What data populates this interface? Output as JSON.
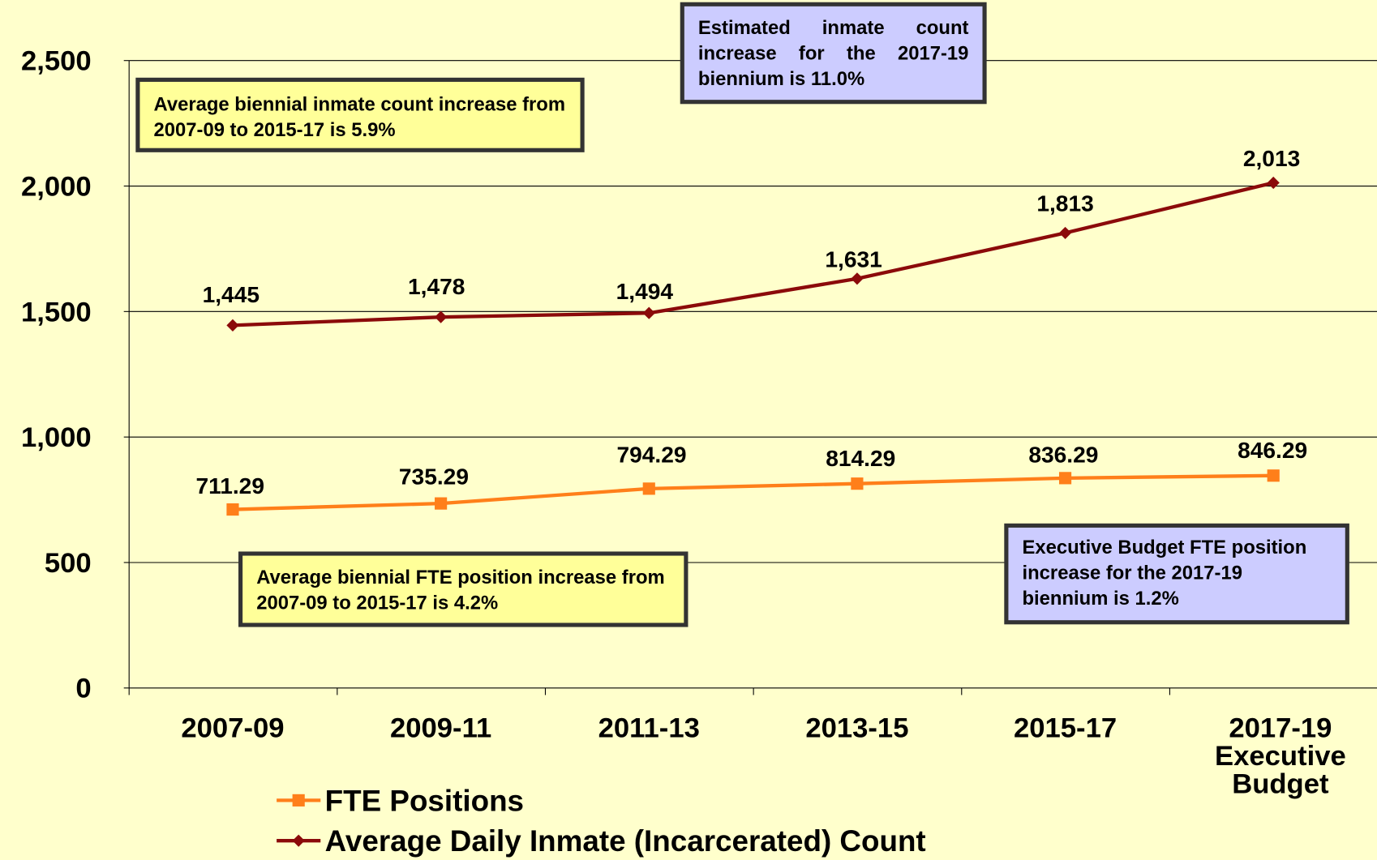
{
  "chart_data": {
    "type": "line",
    "categories": [
      "2007-09",
      "2009-11",
      "2011-13",
      "2013-15",
      "2015-17",
      "2017-19\nExecutive\nBudget"
    ],
    "series": [
      {
        "name": "FTE Positions",
        "color": "#FF7F1A",
        "marker": "square",
        "values": [
          711.29,
          735.29,
          794.29,
          814.29,
          836.29,
          846.29
        ]
      },
      {
        "name": "Average Daily Inmate (Incarcerated) Count",
        "color": "#8B0A0A",
        "marker": "diamond",
        "values": [
          1445,
          1478,
          1494,
          1631,
          1813,
          2013
        ],
        "value_labels": [
          "1,445",
          "1,478",
          "1,494",
          "1,631",
          "1,813",
          "2,013"
        ]
      }
    ],
    "ylim": [
      0,
      2500
    ],
    "yticks": [
      0,
      500,
      {
        "value": 1000,
        "label": "1,000"
      },
      {
        "value": 1500,
        "label": "1,500"
      },
      {
        "value": 2000,
        "label": "2,000"
      },
      {
        "value": 2500,
        "label": "2,500"
      }
    ],
    "grid": true,
    "legend": "bottom",
    "annotations": [
      {
        "text": "Average biennial inmate count increase from 2007-09 to 2015-17 is 5.9%",
        "color": "#FFFF99"
      },
      {
        "text": "Estimated inmate count increase for the 2017-19 biennium is 11.0%",
        "color": "#CCCCFF"
      },
      {
        "text": "Average biennial FTE position increase from 2007-09 to 2015-17 is 4.2%",
        "color": "#FFFF99"
      },
      {
        "text": "Executive Budget FTE position increase for the 2017-19 biennium is 1.2%",
        "color": "#CCCCFF"
      }
    ]
  }
}
